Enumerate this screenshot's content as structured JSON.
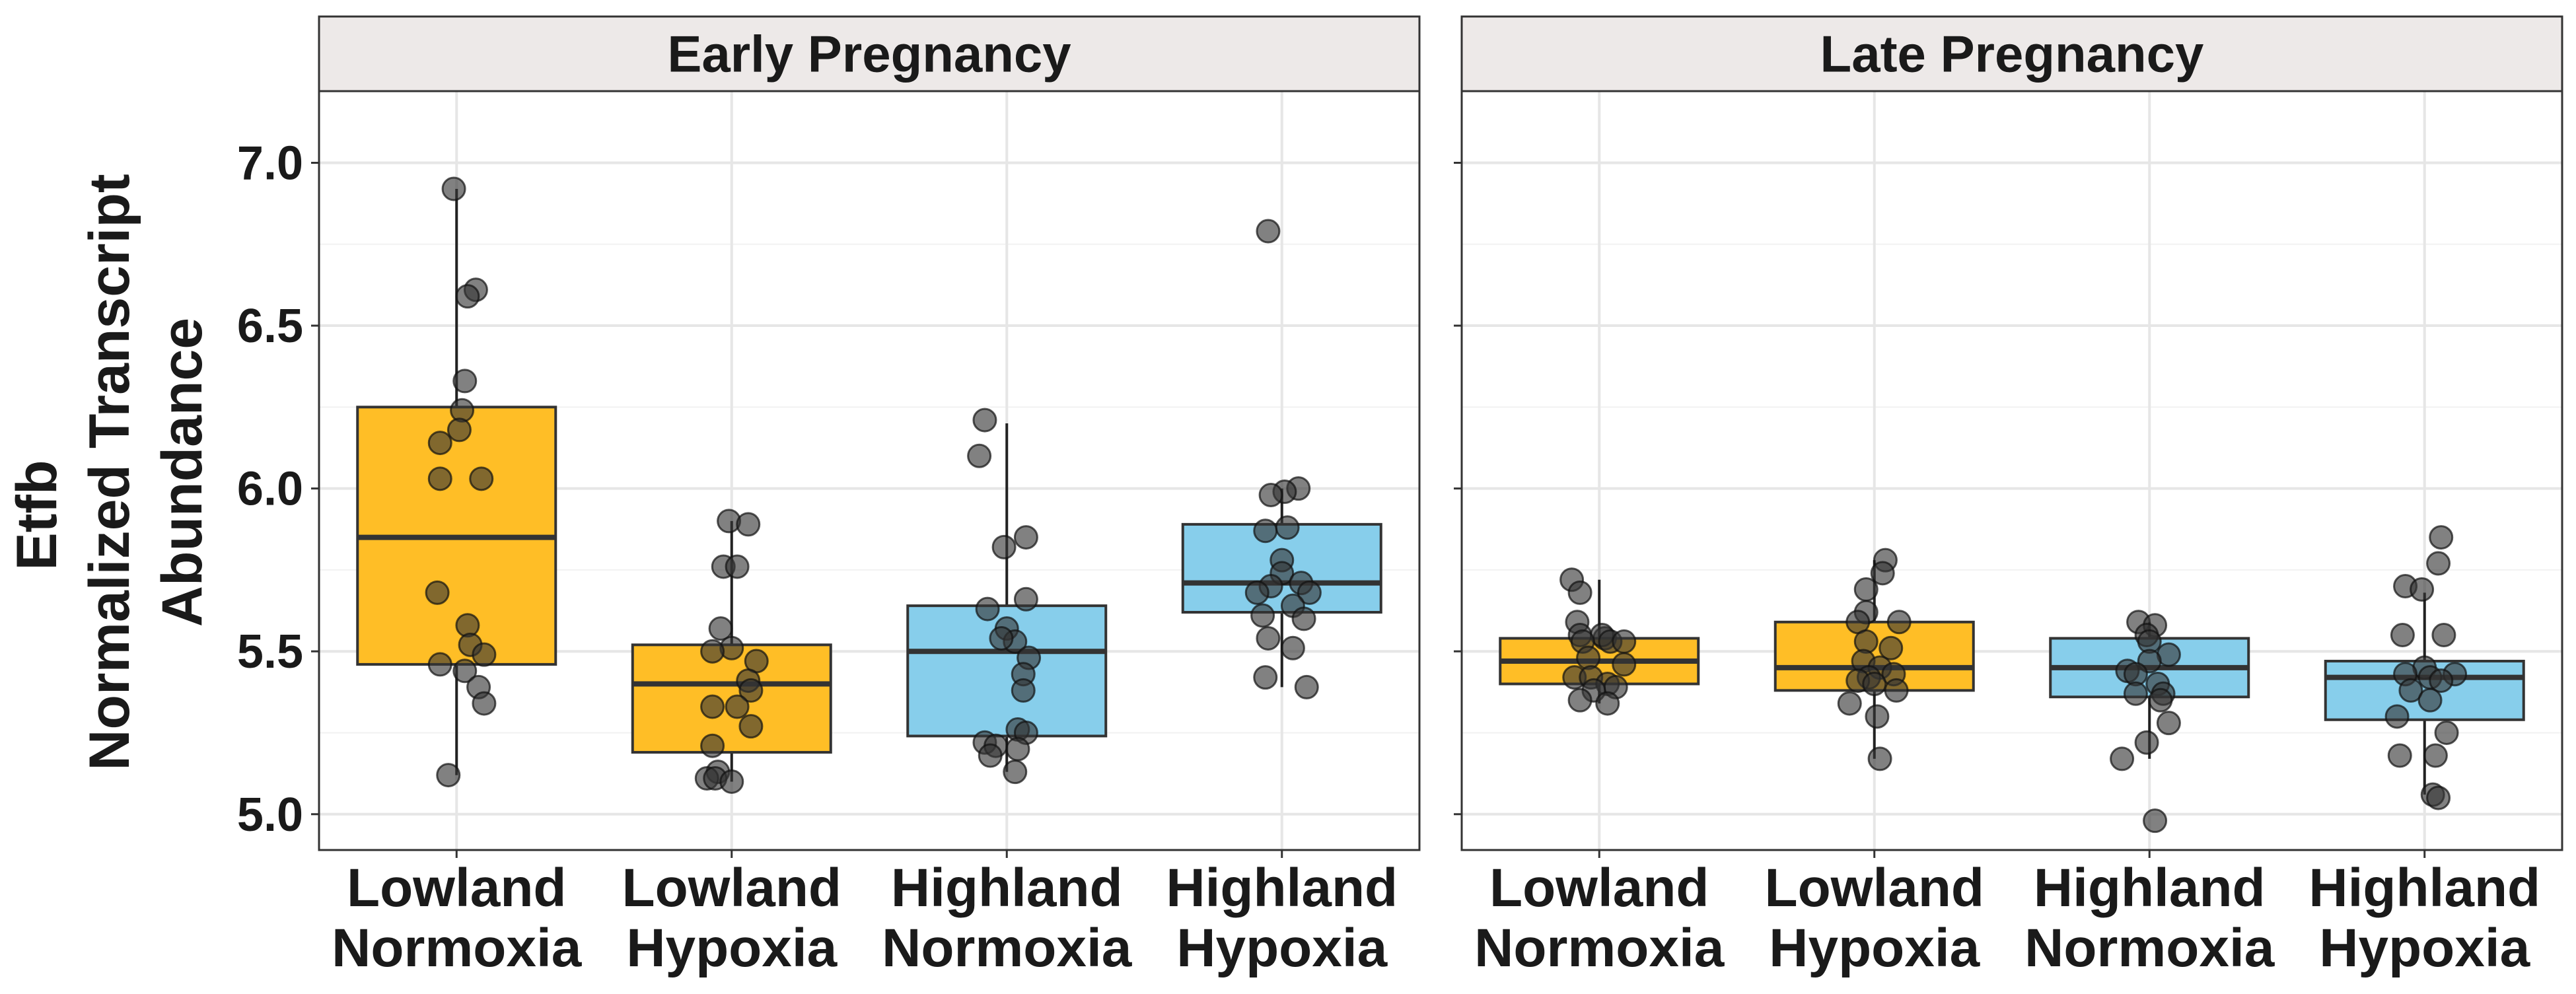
{
  "chart_data": {
    "type": "box",
    "ylabel_lines": [
      "Etfb",
      "Normalized Transcript",
      "Abundance"
    ],
    "ylim": [
      4.89,
      7.22
    ],
    "yticks": [
      5.0,
      5.5,
      6.0,
      6.5,
      7.0
    ],
    "ytick_labels": [
      "5.0",
      "5.5",
      "6.0",
      "6.5",
      "7.0"
    ],
    "grid": true,
    "legend": "none",
    "colors": {
      "Lowland": "#FFBE26",
      "Highland": "#87CEEB",
      "point": "#333333",
      "strip_bg": "#EDE9E8"
    },
    "categories": [
      {
        "line1": "Lowland",
        "line2": "Normoxia",
        "group": "Lowland"
      },
      {
        "line1": "Lowland",
        "line2": "Hypoxia",
        "group": "Lowland"
      },
      {
        "line1": "Highland",
        "line2": "Normoxia",
        "group": "Highland"
      },
      {
        "line1": "Highland",
        "line2": "Hypoxia",
        "group": "Highland"
      }
    ],
    "panels": [
      {
        "title": "Early Pregnancy",
        "boxes": [
          {
            "q1": 5.46,
            "median": 5.85,
            "q3": 6.25,
            "whisker_low": 5.12,
            "whisker_high": 6.92,
            "points": [
              [
                -0.01,
                6.92
              ],
              [
                0.07,
                6.61
              ],
              [
                0.04,
                6.59
              ],
              [
                0.03,
                6.33
              ],
              [
                0.02,
                6.24
              ],
              [
                0.01,
                6.18
              ],
              [
                -0.06,
                6.14
              ],
              [
                -0.06,
                6.03
              ],
              [
                0.09,
                6.03
              ],
              [
                -0.07,
                5.68
              ],
              [
                0.04,
                5.58
              ],
              [
                0.05,
                5.52
              ],
              [
                0.1,
                5.49
              ],
              [
                -0.06,
                5.46
              ],
              [
                0.03,
                5.44
              ],
              [
                0.08,
                5.39
              ],
              [
                0.1,
                5.34
              ],
              [
                -0.03,
                5.12
              ]
            ]
          },
          {
            "q1": 5.19,
            "median": 5.4,
            "q3": 5.52,
            "whisker_low": 5.1,
            "whisker_high": 5.9,
            "points": [
              [
                -0.01,
                5.9
              ],
              [
                0.06,
                5.89
              ],
              [
                -0.03,
                5.76
              ],
              [
                0.02,
                5.76
              ],
              [
                -0.04,
                5.57
              ],
              [
                0.0,
                5.51
              ],
              [
                -0.07,
                5.5
              ],
              [
                0.09,
                5.47
              ],
              [
                0.06,
                5.41
              ],
              [
                0.07,
                5.38
              ],
              [
                -0.07,
                5.33
              ],
              [
                0.02,
                5.33
              ],
              [
                0.07,
                5.27
              ],
              [
                -0.07,
                5.21
              ],
              [
                -0.05,
                5.13
              ],
              [
                -0.09,
                5.11
              ],
              [
                -0.06,
                5.11
              ],
              [
                0.0,
                5.1
              ]
            ]
          },
          {
            "q1": 5.24,
            "median": 5.5,
            "q3": 5.64,
            "whisker_low": 5.13,
            "whisker_high": 6.2,
            "points": [
              [
                -0.08,
                6.21
              ],
              [
                -0.1,
                6.1
              ],
              [
                0.07,
                5.85
              ],
              [
                -0.01,
                5.82
              ],
              [
                0.07,
                5.66
              ],
              [
                -0.07,
                5.63
              ],
              [
                0.0,
                5.57
              ],
              [
                0.03,
                5.53
              ],
              [
                -0.02,
                5.54
              ],
              [
                0.08,
                5.48
              ],
              [
                0.06,
                5.43
              ],
              [
                0.06,
                5.38
              ],
              [
                0.04,
                5.26
              ],
              [
                0.07,
                5.25
              ],
              [
                -0.08,
                5.22
              ],
              [
                -0.04,
                5.21
              ],
              [
                0.04,
                5.2
              ],
              [
                -0.06,
                5.18
              ],
              [
                0.03,
                5.13
              ]
            ]
          },
          {
            "q1": 5.62,
            "median": 5.71,
            "q3": 5.89,
            "whisker_low": 5.39,
            "whisker_high": 6.0,
            "points": [
              [
                -0.05,
                6.79
              ],
              [
                0.06,
                6.0
              ],
              [
                0.01,
                5.99
              ],
              [
                -0.04,
                5.98
              ],
              [
                0.02,
                5.88
              ],
              [
                -0.06,
                5.87
              ],
              [
                0.0,
                5.78
              ],
              [
                0.0,
                5.74
              ],
              [
                0.07,
                5.71
              ],
              [
                -0.04,
                5.7
              ],
              [
                0.1,
                5.68
              ],
              [
                -0.09,
                5.68
              ],
              [
                0.04,
                5.64
              ],
              [
                -0.07,
                5.61
              ],
              [
                0.08,
                5.6
              ],
              [
                -0.05,
                5.54
              ],
              [
                0.04,
                5.51
              ],
              [
                -0.06,
                5.42
              ],
              [
                0.09,
                5.39
              ]
            ]
          }
        ]
      },
      {
        "title": "Late Pregnancy",
        "boxes": [
          {
            "q1": 5.4,
            "median": 5.47,
            "q3": 5.54,
            "whisker_low": 5.34,
            "whisker_high": 5.72,
            "points": [
              [
                -0.1,
                5.72
              ],
              [
                -0.07,
                5.68
              ],
              [
                -0.08,
                5.59
              ],
              [
                -0.07,
                5.55
              ],
              [
                0.02,
                5.54
              ],
              [
                0.01,
                5.55
              ],
              [
                -0.06,
                5.53
              ],
              [
                0.04,
                5.53
              ],
              [
                0.09,
                5.53
              ],
              [
                -0.04,
                5.48
              ],
              [
                0.09,
                5.46
              ],
              [
                -0.09,
                5.42
              ],
              [
                -0.03,
                5.42
              ],
              [
                0.03,
                5.4
              ],
              [
                0.06,
                5.39
              ],
              [
                -0.02,
                5.38
              ],
              [
                -0.07,
                5.35
              ],
              [
                0.03,
                5.34
              ]
            ]
          },
          {
            "q1": 5.38,
            "median": 5.45,
            "q3": 5.59,
            "whisker_low": 5.17,
            "whisker_high": 5.78,
            "points": [
              [
                0.04,
                5.78
              ],
              [
                0.03,
                5.74
              ],
              [
                -0.03,
                5.69
              ],
              [
                -0.03,
                5.62
              ],
              [
                0.09,
                5.59
              ],
              [
                -0.06,
                5.59
              ],
              [
                -0.03,
                5.53
              ],
              [
                0.06,
                5.51
              ],
              [
                -0.04,
                5.47
              ],
              [
                0.02,
                5.45
              ],
              [
                0.07,
                5.43
              ],
              [
                -0.02,
                5.42
              ],
              [
                -0.06,
                5.41
              ],
              [
                0.0,
                5.4
              ],
              [
                0.08,
                5.38
              ],
              [
                -0.09,
                5.34
              ],
              [
                0.01,
                5.3
              ],
              [
                0.02,
                5.17
              ]
            ]
          },
          {
            "q1": 5.36,
            "median": 5.45,
            "q3": 5.54,
            "whisker_low": 5.17,
            "whisker_high": 5.59,
            "points": [
              [
                -0.04,
                5.59
              ],
              [
                0.02,
                5.58
              ],
              [
                -0.01,
                5.55
              ],
              [
                0.0,
                5.53
              ],
              [
                0.07,
                5.49
              ],
              [
                0.0,
                5.47
              ],
              [
                -0.08,
                5.44
              ],
              [
                -0.05,
                5.43
              ],
              [
                0.03,
                5.4
              ],
              [
                -0.05,
                5.37
              ],
              [
                0.05,
                5.37
              ],
              [
                0.04,
                5.35
              ],
              [
                0.07,
                5.28
              ],
              [
                -0.01,
                5.22
              ],
              [
                -0.1,
                5.17
              ],
              [
                0.02,
                4.98
              ]
            ]
          },
          {
            "q1": 5.29,
            "median": 5.42,
            "q3": 5.47,
            "whisker_low": 5.06,
            "whisker_high": 5.68,
            "points": [
              [
                0.06,
                5.85
              ],
              [
                0.05,
                5.77
              ],
              [
                -0.07,
                5.7
              ],
              [
                -0.01,
                5.69
              ],
              [
                -0.08,
                5.55
              ],
              [
                0.07,
                5.55
              ],
              [
                0.0,
                5.45
              ],
              [
                -0.07,
                5.43
              ],
              [
                0.11,
                5.43
              ],
              [
                0.02,
                5.42
              ],
              [
                0.06,
                5.41
              ],
              [
                -0.05,
                5.38
              ],
              [
                0.02,
                5.35
              ],
              [
                -0.1,
                5.3
              ],
              [
                0.08,
                5.25
              ],
              [
                -0.09,
                5.18
              ],
              [
                0.04,
                5.18
              ],
              [
                0.03,
                5.06
              ],
              [
                0.05,
                5.05
              ]
            ]
          }
        ]
      }
    ]
  }
}
